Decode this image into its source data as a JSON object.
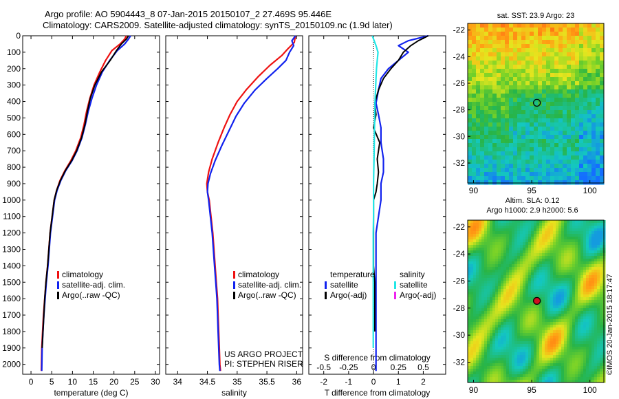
{
  "header": {
    "line1": "Argo profile: AO 5904443_8 07-Jan-2015 20150107_2 27.469S 95.446E",
    "line2": "Climatology: CARS2009. Satellite-adjusted climatology: synTS_20150109.nc (1.9d later)"
  },
  "credit": {
    "project": "US ARGO PROJECT",
    "pi": "PI: STEPHEN RISER",
    "copyright": "©IMOS 20-Jan-2015 18:17:47"
  },
  "colors": {
    "climatology": "#ee1111",
    "satellite": "#1122ee",
    "argo": "#000000",
    "sal_sat": "#22e6e6",
    "sal_argo": "#ee22ee"
  },
  "chart_data": [
    {
      "type": "line",
      "id": "temperature",
      "xlabel": "temperature (deg C)",
      "ylabel": "",
      "xlim": [
        -2,
        31
      ],
      "ylim": [
        2060,
        0
      ],
      "xticks": [
        "0",
        "5",
        "10",
        "15",
        "20",
        "25",
        "30"
      ],
      "xtick_values": [
        0,
        5,
        10,
        15,
        20,
        25,
        30
      ],
      "yticks": [
        "0",
        "100",
        "200",
        "300",
        "400",
        "500",
        "600",
        "700",
        "800",
        "900",
        "1000",
        "1100",
        "1200",
        "1300",
        "1400",
        "1500",
        "1600",
        "1700",
        "1800",
        "1900",
        "2000"
      ],
      "ytick_values": [
        0,
        100,
        200,
        300,
        400,
        500,
        600,
        700,
        800,
        900,
        1000,
        1100,
        1200,
        1300,
        1400,
        1500,
        1600,
        1700,
        1800,
        1900,
        2000
      ],
      "legend": [
        "climatology",
        "satellite-adj. clim.",
        "Argo(..raw -QC)"
      ],
      "series": [
        {
          "name": "climatology",
          "color": "#ee1111",
          "x": [
            23.0,
            22.6,
            21.5,
            19.5,
            18.0,
            16.6,
            15.2,
            14.2,
            13.4,
            12.8,
            12.0,
            10.8,
            9.6,
            8.2,
            7.0,
            6.2,
            5.6,
            5.1,
            4.6,
            4.3,
            4.0,
            3.6,
            3.3,
            3.0,
            2.8,
            2.6,
            2.5
          ],
          "y": [
            0,
            20,
            50,
            90,
            150,
            220,
            300,
            380,
            460,
            540,
            620,
            700,
            760,
            820,
            880,
            940,
            1000,
            1100,
            1200,
            1300,
            1400,
            1500,
            1600,
            1700,
            1800,
            1900,
            2040
          ]
        },
        {
          "name": "satellite-adj. clim.",
          "color": "#1122ee",
          "x": [
            24.0,
            23.5,
            22.6,
            20.8,
            19.0,
            17.2,
            15.8,
            14.7,
            13.8,
            13.1,
            12.3,
            11.1,
            9.9,
            8.4,
            7.2,
            6.3,
            5.7,
            5.2,
            4.7,
            4.4,
            4.1,
            3.7,
            3.4,
            3.1,
            2.9,
            2.7,
            2.6
          ],
          "y": [
            0,
            20,
            50,
            90,
            150,
            220,
            300,
            380,
            460,
            540,
            620,
            700,
            760,
            820,
            880,
            940,
            1000,
            1100,
            1200,
            1300,
            1400,
            1500,
            1600,
            1700,
            1800,
            1900,
            2040
          ]
        },
        {
          "name": "Argo(..raw -QC)",
          "color": "#000000",
          "x": [
            23.5,
            23.0,
            21.8,
            20.6,
            19.1,
            17.0,
            15.4,
            14.3,
            13.6,
            13.0,
            12.2,
            11.0,
            9.8,
            8.3,
            7.1,
            6.2,
            5.6,
            5.1,
            4.6,
            4.3,
            4.0,
            3.6,
            3.3,
            3.1,
            2.9,
            2.7
          ],
          "y": [
            0,
            20,
            50,
            90,
            150,
            220,
            300,
            380,
            460,
            540,
            620,
            700,
            760,
            820,
            880,
            940,
            1000,
            1100,
            1200,
            1300,
            1400,
            1500,
            1600,
            1700,
            1800,
            1900
          ]
        }
      ]
    },
    {
      "type": "line",
      "id": "salinity",
      "xlabel": "salinity",
      "ylabel": "",
      "xlim": [
        33.8,
        36.1
      ],
      "ylim": [
        2060,
        0
      ],
      "xticks": [
        "34",
        "34.5",
        "35",
        "35.5",
        "36"
      ],
      "xtick_values": [
        34,
        34.5,
        35,
        35.5,
        36
      ],
      "legend": [
        "climatology",
        "satellite-adj. clim.",
        "Argo(..raw -QC)"
      ],
      "series": [
        {
          "name": "climatology",
          "color": "#ee1111",
          "x": [
            35.98,
            35.96,
            35.85,
            35.75,
            35.55,
            35.35,
            35.15,
            35.0,
            34.88,
            34.78,
            34.68,
            34.58,
            34.52,
            34.49,
            34.5,
            34.53,
            34.56,
            34.59,
            34.61,
            34.63,
            34.65,
            34.67,
            34.68,
            34.69,
            34.7,
            34.71,
            34.72
          ],
          "y": [
            0,
            40,
            80,
            120,
            180,
            250,
            330,
            400,
            480,
            560,
            650,
            750,
            830,
            900,
            950,
            1000,
            1100,
            1200,
            1300,
            1400,
            1500,
            1600,
            1700,
            1800,
            1900,
            2000,
            2040
          ]
        },
        {
          "name": "satellite-adj. clim.",
          "color": "#1122ee",
          "x": [
            35.98,
            35.92,
            35.95,
            35.88,
            35.82,
            35.68,
            35.5,
            35.3,
            35.12,
            34.98,
            34.86,
            34.74,
            34.63,
            34.55,
            34.51,
            34.5,
            34.52,
            34.55,
            34.58,
            34.6,
            34.62,
            34.64,
            34.66,
            34.67,
            34.68,
            34.69,
            34.7,
            34.71
          ],
          "y": [
            0,
            30,
            60,
            100,
            150,
            200,
            260,
            330,
            410,
            490,
            580,
            670,
            760,
            840,
            900,
            950,
            1000,
            1100,
            1200,
            1300,
            1400,
            1500,
            1600,
            1700,
            1800,
            1900,
            2000,
            2040
          ]
        }
      ]
    },
    {
      "type": "line",
      "id": "difference",
      "xlabel": "T difference from climatology",
      "xlabel_top": "S difference from climatology",
      "ylabel": "",
      "xlim": [
        -2.6,
        2.9
      ],
      "ylim": [
        2060,
        0
      ],
      "xticks": [
        "-2",
        "-1",
        "0",
        "1",
        "2"
      ],
      "xtick_values": [
        -2,
        -1,
        0,
        1,
        2
      ],
      "xticks_top": [
        "-0.5",
        "-0.25",
        "0",
        "0.25",
        "0.5"
      ],
      "xtick_top_values": [
        -0.5,
        -0.25,
        0,
        0.25,
        0.5
      ],
      "legend_groups": [
        {
          "title": "temperature",
          "items": [
            "satellite",
            "Argo(-adj)"
          ]
        },
        {
          "title": "salinity",
          "items": [
            "satellite",
            "Argo(-adj)"
          ]
        }
      ],
      "series": [
        {
          "name": "temperature satellite",
          "color": "#1122ee",
          "x": [
            2.2,
            1.4,
            1.0,
            1.4,
            1.0,
            0.6,
            0.3,
            0.2,
            0.1,
            0.2,
            0.3,
            0.3,
            0.4,
            0.4,
            0.3,
            0.3,
            0.3,
            0.2,
            0.1,
            0.1,
            0.1,
            0.1,
            0.1,
            0.1,
            0.1,
            0.1,
            0.1
          ],
          "y": [
            0,
            30,
            60,
            100,
            150,
            200,
            260,
            330,
            410,
            480,
            560,
            650,
            750,
            830,
            900,
            950,
            1000,
            1100,
            1200,
            1300,
            1400,
            1500,
            1600,
            1700,
            1800,
            1900,
            2040
          ]
        },
        {
          "name": "temperature Argo(-adj)",
          "color": "#000000",
          "x": [
            2.2,
            1.8,
            1.5,
            1.2,
            1.0,
            0.7,
            0.4,
            0.2,
            0.05,
            0.1,
            0.0,
            0.25,
            0.15,
            0.2,
            0.15,
            0.1,
            0.0,
            0.0,
            0.0,
            0.0,
            0.0,
            0.05,
            0.05,
            0.05,
            0.05
          ],
          "y": [
            0,
            30,
            60,
            100,
            150,
            200,
            260,
            330,
            410,
            480,
            560,
            650,
            750,
            830,
            900,
            950,
            1000,
            1100,
            1200,
            1300,
            1400,
            1500,
            1600,
            1700,
            1800
          ]
        },
        {
          "name": "salinity satellite",
          "color": "#22e6e6",
          "x": [
            -0.05,
            0.1,
            0.18,
            0.15,
            0.12,
            0.1,
            0.08,
            0.06,
            0.05,
            0.04,
            0.03,
            0.02,
            0.01,
            0.0,
            0.0,
            0.0,
            0.0,
            -0.01,
            -0.01,
            -0.01,
            -0.01,
            -0.01,
            -0.01,
            -0.01
          ],
          "y": [
            0,
            60,
            100,
            150,
            200,
            260,
            330,
            410,
            480,
            560,
            650,
            750,
            830,
            900,
            950,
            1000,
            1100,
            1200,
            1300,
            1400,
            1500,
            1600,
            1700,
            1900
          ]
        }
      ]
    }
  ],
  "maps": [
    {
      "id": "sst_map",
      "title": "sat. SST: 23.9 Argo: 23",
      "xticks": [
        "90",
        "95",
        "100"
      ],
      "yticks": [
        "-22",
        "-24",
        "-26",
        "-28",
        "-30",
        "-32"
      ],
      "float_lon": 95.446,
      "float_lat": -27.469
    },
    {
      "id": "sla_map",
      "title_line1": "Altim. SLA: 0.12",
      "title_line2": "Argo h1000: 2.9 h2000: 5.6",
      "xticks": [
        "90",
        "95",
        "100"
      ],
      "yticks": [
        "-22",
        "-24",
        "-26",
        "-28",
        "-30",
        "-32"
      ],
      "float_lon": 95.446,
      "float_lat": -27.469
    }
  ]
}
